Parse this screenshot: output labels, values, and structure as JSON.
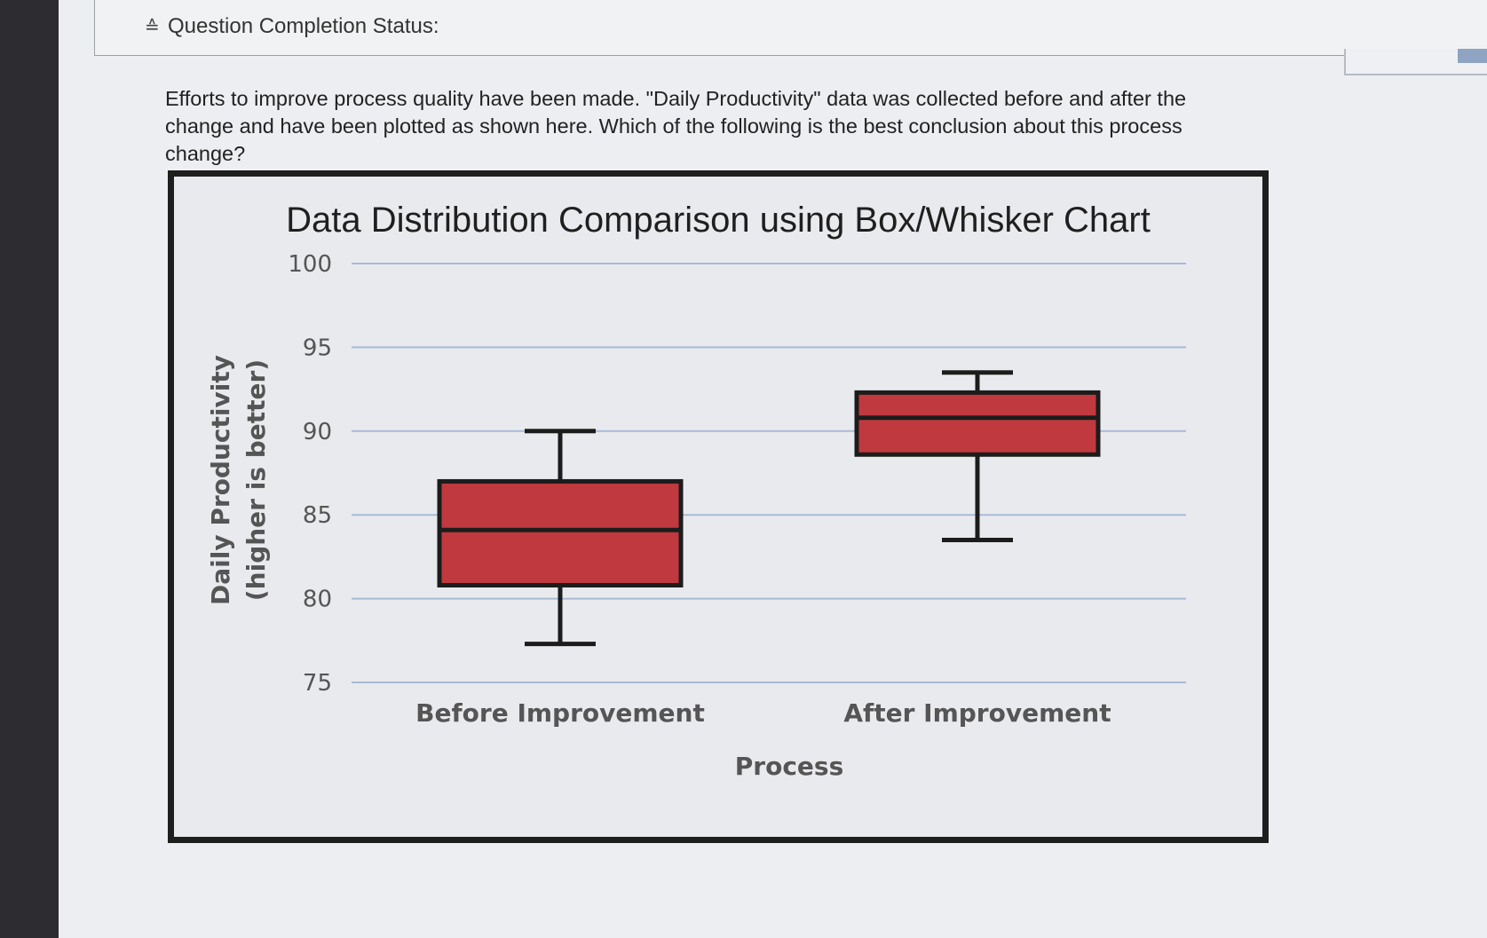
{
  "header": {
    "status_title": "Question Completion Status:"
  },
  "question": {
    "text": "Efforts to improve process quality have been made. \"Daily Productivity\" data was collected before and after the change and have been plotted as shown here. Which of the following is the best conclusion about this process change?"
  },
  "chart_data": {
    "type": "box",
    "title": "Data Distribution Comparison using Box/Whisker Chart",
    "xlabel": "Process",
    "ylabel": "Daily Productivity",
    "ylabel_sub": "(higher is better)",
    "ylim": [
      75,
      100
    ],
    "yticks": [
      100,
      95,
      90,
      85,
      80,
      75
    ],
    "grid": true,
    "categories": [
      "Before Improvement",
      "After Improvement"
    ],
    "boxes": [
      {
        "category": "Before Improvement",
        "min": 77.3,
        "q1": 80.8,
        "median": 84.1,
        "q3": 87.0,
        "max": 90.0
      },
      {
        "category": "After Improvement",
        "min": 83.5,
        "q1": 88.6,
        "median": 90.8,
        "q3": 92.3,
        "max": 93.5
      }
    ],
    "box_color": "#c0393e",
    "box_edge_color": "#1c1c1c",
    "grid_color": "#a9b9d8"
  }
}
